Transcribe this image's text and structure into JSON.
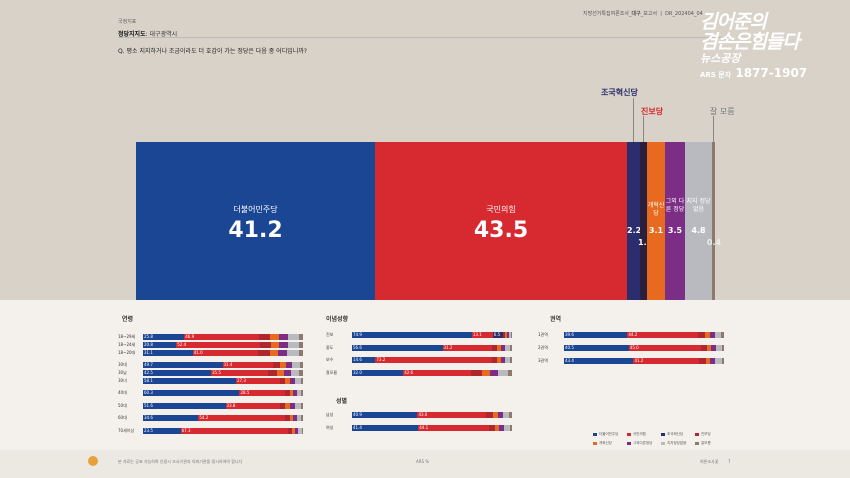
{
  "header": {
    "category": "국정지표",
    "subject_prefix": "정당지지도",
    "subject_region": ": 대구광역시",
    "doc_title": "지방선거특집여론조사_",
    "doc_region": "대구",
    "doc_suffix": "_보고서",
    "doc_code": "DR_202404_04",
    "question": "Q. 평소 지지하거나 조금이라도 더 호감이 가는 정당은 다음 중 어디입니까?"
  },
  "logo": {
    "line1": "김어준의",
    "line2": "겸손은힘들다",
    "line3": "뉴스공장",
    "ars_label": "ARS 문자",
    "phone": "1877-1907"
  },
  "main_chart": {
    "bars": [
      {
        "name": "더불어민주당",
        "value": "41.2",
        "color": "#1a4694"
      },
      {
        "name": "국민의힘",
        "value": "43.5",
        "color": "#d62a30"
      },
      {
        "name": "",
        "value": "2.2",
        "color": "#2b2d6e"
      },
      {
        "name": "",
        "value": "1.3",
        "color": "#2b1f3e"
      },
      {
        "name": "개혁신당",
        "value": "3.1",
        "color": "#e86a1e"
      },
      {
        "name": "그외 다른 정당",
        "value": "3.5",
        "color": "#7c2e86"
      },
      {
        "name": "지지 정당 없음",
        "value": "4.8",
        "color": "#b8bac0"
      },
      {
        "name": "",
        "value": "0.4",
        "color": "#8c7a6c"
      }
    ],
    "callouts": {
      "rebuild": "조국혁신당",
      "progressive": "진보당",
      "dontknow": "잘 모름"
    }
  },
  "sections": {
    "age": {
      "title": "연령",
      "rows": [
        {
          "label": "18~29세",
          "v1": "25.8",
          "v2": "46.9",
          "v3": "",
          "v4": ""
        },
        {
          "label": "18~24세",
          "v1": "20.8",
          "v2": "52.4",
          "v3": "",
          "v4": ""
        },
        {
          "label": "18~20대",
          "v1": "31.1",
          "v2": "41.0",
          "v3": "",
          "v4": ""
        },
        {
          "label": "30대",
          "v1": "49.7",
          "v2": "31.4",
          "v3": "",
          "v4": ""
        },
        {
          "label": "30남",
          "v1": "42.5",
          "v2": "35.5",
          "v3": "",
          "v4": ""
        },
        {
          "label": "30녀",
          "v1": "58.1",
          "v2": "27.3",
          "v3": "",
          "v4": ""
        },
        {
          "label": "40대",
          "v1": "60.3",
          "v2": "28.5",
          "v3": "",
          "v4": ""
        },
        {
          "label": "50대",
          "v1": "51.6",
          "v2": "33.8",
          "v3": "",
          "v4": ""
        },
        {
          "label": "60대",
          "v1": "34.6",
          "v2": "54.2",
          "v3": "",
          "v4": ""
        },
        {
          "label": "70세이상",
          "v1": "23.5",
          "v2": "67.3",
          "v3": "",
          "v4": ""
        }
      ]
    },
    "ideology": {
      "title": "이념성향",
      "rows": [
        {
          "label": "진보",
          "v1": "74.9",
          "v2": "13.1",
          "v3": "6.5",
          "v4": ""
        },
        {
          "label": "중도",
          "v1": "56.6",
          "v2": "31.2",
          "v3": "",
          "v4": ""
        },
        {
          "label": "보수",
          "v1": "14.6",
          "v2": "73.2",
          "v3": "",
          "v4": ""
        },
        {
          "label": "잘모름",
          "v1": "32.0",
          "v2": "42.6",
          "v3": "",
          "v4": ""
        }
      ]
    },
    "gender": {
      "title": "성별",
      "rows": [
        {
          "label": "남성",
          "v1": "40.9",
          "v2": "43.0",
          "v3": "",
          "v4": ""
        },
        {
          "label": "여성",
          "v1": "41.4",
          "v2": "44.1",
          "v3": "",
          "v4": ""
        }
      ]
    },
    "region": {
      "title": "권역",
      "rows": [
        {
          "label": "1권역",
          "v1": "39.6",
          "v2": "44.2",
          "v3": "",
          "v4": ""
        },
        {
          "label": "2권역",
          "v1": "40.5",
          "v2": "45.0",
          "v3": "",
          "v4": ""
        },
        {
          "label": "3권역",
          "v1": "43.4",
          "v2": "41.2",
          "v3": "",
          "v4": ""
        }
      ]
    }
  },
  "legend": [
    {
      "label": "더불어민주당",
      "color": "#1a4694"
    },
    {
      "label": "국민의힘",
      "color": "#d62a30"
    },
    {
      "label": "조국혁신당",
      "color": "#2b2d6e"
    },
    {
      "label": "진보당",
      "color": "#b0262e"
    },
    {
      "label": "개혁신당",
      "color": "#e86a1e"
    },
    {
      "label": "그외다른정당",
      "color": "#7c2e86"
    },
    {
      "label": "지지정당없음",
      "color": "#b8bac0"
    },
    {
      "label": "잘모름",
      "color": "#8c7a6c"
    }
  ],
  "footer": {
    "left": "본 자료는 공표 가능하며 인용시 조사기관과 의뢰기관을 명시하여야 합니다",
    "center": "ARS %",
    "right": "여론조사꽃",
    "page": "7"
  }
}
